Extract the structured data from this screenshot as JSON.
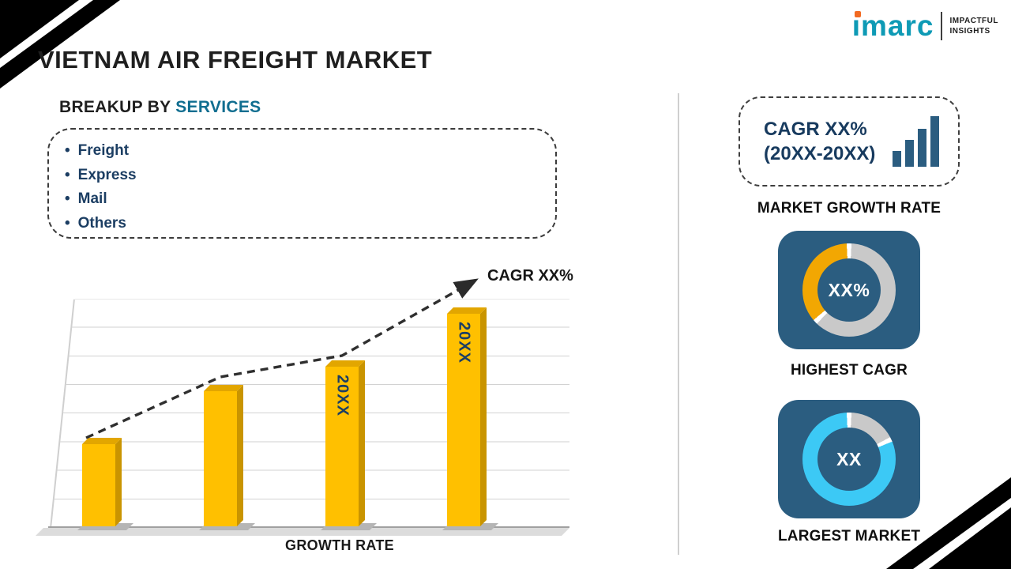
{
  "page": {
    "title": "VIETNAM AIR FREIGHT MARKET"
  },
  "logo": {
    "brand": "imarc",
    "brand_stem": "ı",
    "brand_rest": "marc",
    "tagline_line1": "IMPACTFUL",
    "tagline_line2": "INSIGHTS"
  },
  "breakup": {
    "heading_prefix": "BREAKUP BY ",
    "heading_accent": "SERVICES",
    "items": [
      "Freight",
      "Express",
      "Mail",
      "Others"
    ]
  },
  "chart_data": {
    "type": "bar",
    "bar_labels": [
      "",
      "",
      "20XX",
      "20XX"
    ],
    "values": [
      37,
      61,
      72,
      96
    ],
    "values_unit": "relative bar height, % of plot (no numeric axis shown)",
    "trend_label": "CAGR XX%",
    "trend_style": "dashed-arrow-up",
    "xlabel": "GROWTH RATE",
    "grid": "horizontal-lines",
    "legend": "none"
  },
  "right_panel": {
    "cagr_card": {
      "line1": "CAGR XX%",
      "line2": "(20XX-20XX)",
      "caption": "MARKET GROWTH RATE"
    },
    "highest_cagr": {
      "value": "XX%",
      "caption": "HIGHEST CAGR",
      "segment_pct": 37
    },
    "largest_market": {
      "value": "XX",
      "caption": "LARGEST MARKET",
      "segment_pct": 82
    }
  },
  "colors": {
    "accent_teal": "#116e90",
    "navy_text": "#1c3e63",
    "tile_blue": "#2b5d80",
    "bar_yellow": "#ffc000",
    "donut_yellow": "#f2a702",
    "donut_cyan": "#3cc9f5",
    "ring_gray": "#c9c9c9",
    "logo_teal": "#0e9ab5",
    "logo_orange": "#f26a21"
  }
}
